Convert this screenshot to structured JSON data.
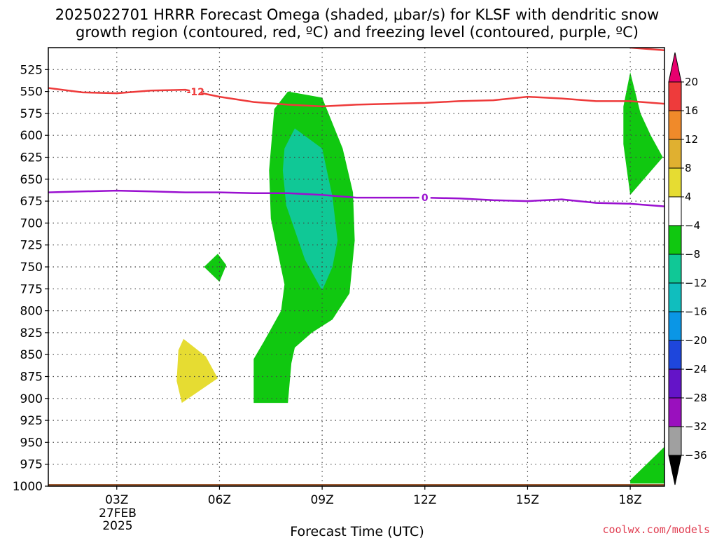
{
  "title_line1": "2025022701 HRRR Forecast Omega (shaded, μbar/s) for KLSF with dendritic snow",
  "title_line2": "growth region (contoured, red, ºC) and freezing level (contoured, purple, ºC)",
  "xlabel": "Forecast Time (UTC)",
  "credit": "coolwx.com/models",
  "date_label": {
    "day": "27FEB",
    "year": "2025"
  },
  "chart_data": {
    "type": "contour",
    "title": "2025022701 HRRR Forecast Omega (shaded, μbar/s) for KLSF with dendritic snow growth region (contoured, red, ºC) and freezing level (contoured, purple, ºC)",
    "xlabel": "Forecast Time (UTC)",
    "ylabel": "",
    "x_units": "forecast hour from 2025-02-27 01Z",
    "xlim": [
      1,
      19
    ],
    "ylim": [
      1000,
      500
    ],
    "y_reversed": true,
    "x_ticks": [
      {
        "hour": 3,
        "label": "03Z"
      },
      {
        "hour": 6,
        "label": "06Z"
      },
      {
        "hour": 9,
        "label": "09Z"
      },
      {
        "hour": 12,
        "label": "12Z"
      },
      {
        "hour": 15,
        "label": "15Z"
      },
      {
        "hour": 18,
        "label": "18Z"
      }
    ],
    "y_ticks": [
      525,
      550,
      575,
      600,
      625,
      650,
      675,
      700,
      725,
      750,
      775,
      800,
      825,
      850,
      875,
      900,
      925,
      950,
      975,
      1000
    ],
    "grid": true,
    "colorbar": {
      "labels": [
        "20",
        "16",
        "12",
        "8",
        "4",
        "−4",
        "−8",
        "−12",
        "−16",
        "−20",
        "−24",
        "−28",
        "−32",
        "−36"
      ],
      "bins": [
        {
          "color": "#e8006e",
          "role": "overflow-high"
        },
        {
          "color": "#ee3b3b",
          "from": 16,
          "to": 20
        },
        {
          "color": "#f08a2a",
          "from": 12,
          "to": 16
        },
        {
          "color": "#e0b030",
          "from": 8,
          "to": 12
        },
        {
          "color": "#e6dc32",
          "from": 4,
          "to": 8
        },
        {
          "color": "#ffffff",
          "from": -4,
          "to": 4
        },
        {
          "color": "#10c810",
          "from": -8,
          "to": -4
        },
        {
          "color": "#10c896",
          "from": -12,
          "to": -8
        },
        {
          "color": "#10bebe",
          "from": -16,
          "to": -12
        },
        {
          "color": "#0a96e6",
          "from": -20,
          "to": -16
        },
        {
          "color": "#1e46dc",
          "from": -24,
          "to": -20
        },
        {
          "color": "#6414c8",
          "from": -28,
          "to": -24
        },
        {
          "color": "#9a10be",
          "from": -32,
          "to": -28
        },
        {
          "color": "#a0a0a0",
          "from": -36,
          "to": -32
        },
        {
          "color": "#000000",
          "role": "overflow-low"
        }
      ]
    },
    "shaded_regions": [
      {
        "name": "omega-main-green",
        "band": "-8 to -4",
        "color": "#10c810",
        "outline": [
          [
            8.0,
            550
          ],
          [
            9.0,
            557
          ],
          [
            9.6,
            615
          ],
          [
            9.9,
            665
          ],
          [
            9.95,
            720
          ],
          [
            9.8,
            780
          ],
          [
            9.3,
            810
          ],
          [
            8.7,
            825
          ],
          [
            8.2,
            842
          ],
          [
            8.1,
            860
          ],
          [
            8.0,
            905
          ],
          [
            7.0,
            905
          ],
          [
            7.0,
            855
          ],
          [
            7.3,
            835
          ],
          [
            7.8,
            800
          ],
          [
            7.9,
            770
          ],
          [
            7.5,
            695
          ],
          [
            7.45,
            640
          ],
          [
            7.6,
            570
          ],
          [
            8.0,
            550
          ]
        ]
      },
      {
        "name": "omega-main-teal",
        "band": "-12 to -8",
        "color": "#10c896",
        "outline": [
          [
            8.2,
            592
          ],
          [
            9.0,
            615
          ],
          [
            9.3,
            670
          ],
          [
            9.45,
            720
          ],
          [
            9.3,
            750
          ],
          [
            9.0,
            777
          ],
          [
            8.5,
            742
          ],
          [
            7.95,
            680
          ],
          [
            7.85,
            640
          ],
          [
            7.9,
            615
          ],
          [
            8.2,
            592
          ]
        ]
      },
      {
        "name": "omega-small-green",
        "band": "-8 to -4",
        "color": "#10c810",
        "outline": [
          [
            5.95,
            735
          ],
          [
            6.2,
            748
          ],
          [
            6.0,
            767
          ],
          [
            5.55,
            750
          ],
          [
            5.95,
            735
          ]
        ]
      },
      {
        "name": "omega-positive-yellow",
        "band": "4 to 8",
        "color": "#e6dc32",
        "outline": [
          [
            4.95,
            832
          ],
          [
            5.6,
            852
          ],
          [
            5.95,
            877
          ],
          [
            4.9,
            905
          ],
          [
            4.75,
            880
          ],
          [
            4.8,
            845
          ],
          [
            4.95,
            832
          ]
        ]
      },
      {
        "name": "omega-right-green",
        "band": "-8 to -4",
        "color": "#10c810",
        "outline": [
          [
            18.0,
            528
          ],
          [
            18.3,
            575
          ],
          [
            18.6,
            600
          ],
          [
            18.95,
            625
          ],
          [
            18.0,
            668
          ],
          [
            17.8,
            610
          ],
          [
            17.8,
            567
          ],
          [
            18.0,
            528
          ]
        ]
      },
      {
        "name": "omega-bottom-right-green",
        "band": "-8 to -4",
        "color": "#10c810",
        "outline": [
          [
            18.0,
            993
          ],
          [
            19.0,
            955
          ],
          [
            19.0,
            997
          ],
          [
            18.0,
            997
          ]
        ]
      }
    ],
    "series": [
      {
        "name": "-12",
        "color": "#ee3a3a",
        "label_at_hour": 5.3,
        "x": [
          1,
          2,
          3,
          4,
          5,
          6,
          7,
          8,
          9,
          10,
          11,
          12,
          13,
          14,
          15,
          16,
          17,
          18,
          19
        ],
        "y": [
          546,
          551,
          552,
          549,
          548,
          556,
          562,
          565,
          567,
          565,
          564,
          563,
          561,
          560,
          556,
          558,
          561,
          561,
          564
        ]
      },
      {
        "name": "0",
        "color": "#9a10d0",
        "label_at_hour": 12,
        "x": [
          1,
          2,
          3,
          4,
          5,
          6,
          7,
          8,
          9,
          10,
          11,
          12,
          13,
          14,
          15,
          16,
          17,
          18,
          19
        ],
        "y": [
          665,
          664,
          663,
          664,
          665,
          665,
          666,
          666,
          668,
          671,
          671,
          671,
          672,
          674,
          675,
          673,
          677,
          678,
          681
        ]
      },
      {
        "name": "-12-top-right",
        "color": "#ee3a3a",
        "x": [
          18.0,
          19.0
        ],
        "y": [
          500,
          503
        ]
      },
      {
        "name": "surface",
        "color": "#9a5a32",
        "x": [
          1,
          19
        ],
        "y": [
          1000,
          1000
        ]
      }
    ]
  }
}
